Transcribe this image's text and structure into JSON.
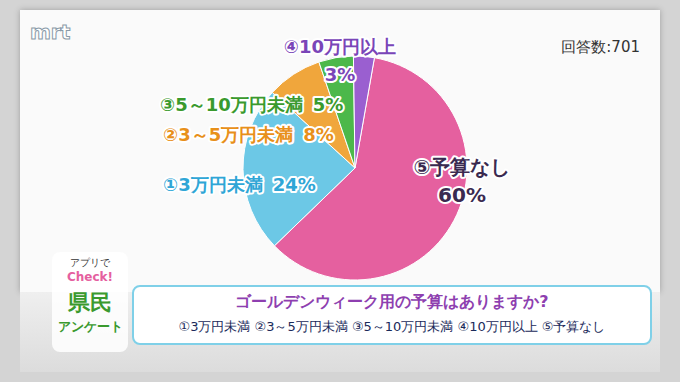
{
  "chart_data": {
    "type": "pie",
    "title": "ゴールデンウィーク用の予算はありますか?",
    "subtitle": "①3万円未満 ②3～5万円未満 ③5～10万円未満 ④10万円以上 ⑤予算なし",
    "annotations": [
      "mrt",
      "回答数:701",
      "アプリで",
      "Check!",
      "県民",
      "アンケート"
    ],
    "categories": [
      "⑤予算なし",
      "①3万円未満",
      "②3～5万円未満",
      "③5～10万円未満",
      "④10万円以上"
    ],
    "values": [
      60,
      24,
      8,
      5,
      3
    ],
    "value_labels": [
      "60%",
      "24%",
      "8%",
      "5%",
      "3%"
    ],
    "colors": [
      "#e5609f",
      "#6cc8e6",
      "#f0a63c",
      "#4cb84a",
      "#9a5fd0"
    ],
    "data_labels": true
  }
}
